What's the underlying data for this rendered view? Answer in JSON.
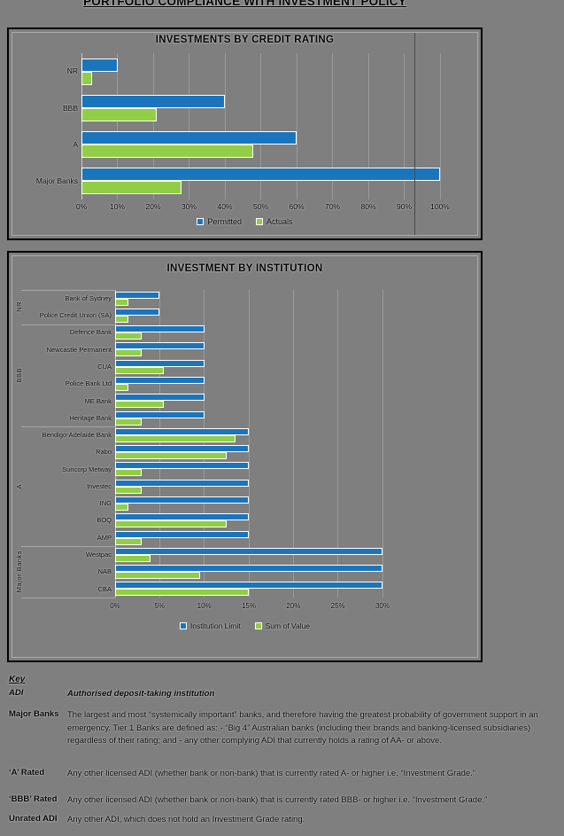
{
  "page": {
    "title": "PORTFOLIO COMPLIANCE WITH INVESTMENT POLICY"
  },
  "colors": {
    "background": "#7F7F7F",
    "permitted_blue": "#1B75BC",
    "actuals_green": "#92CE45",
    "bar_border": "#FFFFFF"
  },
  "chart_data": [
    {
      "type": "bar",
      "orientation": "horizontal",
      "title": "INVESTMENTS BY CREDIT RATING",
      "categories": [
        "NR",
        "BBB",
        "A",
        "Major Banks"
      ],
      "series": [
        {
          "name": "Permitted",
          "color": "#1B75BC",
          "values": [
            10,
            40,
            60,
            100
          ]
        },
        {
          "name": "Actuals",
          "color": "#92CE45",
          "values": [
            3,
            21,
            48,
            28
          ]
        }
      ],
      "xlim": [
        0,
        100
      ],
      "x_ticks": [
        "0%",
        "10%",
        "20%",
        "30%",
        "40%",
        "50%",
        "60%",
        "70%",
        "80%",
        "90%",
        "100%"
      ],
      "grid": true,
      "legend_position": "bottom"
    },
    {
      "type": "bar",
      "orientation": "horizontal",
      "title": "INVESTMENT BY INSTITUTION",
      "groups": [
        {
          "label": "NR",
          "count": 2
        },
        {
          "label": "BBB",
          "count": 6
        },
        {
          "label": "A",
          "count": 7
        },
        {
          "label": "Major Banks",
          "count": 3
        }
      ],
      "categories": [
        "Bank of Sydney",
        "Police Credit Union (SA)",
        "Defence Bank",
        "Newcastle Permanent",
        "CUA",
        "Police Bank Ltd",
        "ME Bank",
        "Heritage Bank",
        "Bendigo-Adelaide Bank",
        "Rabo",
        "Suncorp Metway",
        "Investec",
        "ING",
        "BOQ",
        "AMP",
        "Westpac",
        "NAB",
        "CBA"
      ],
      "series": [
        {
          "name": "Institution Limit",
          "color": "#1B75BC",
          "values": [
            5,
            5,
            10,
            10,
            10,
            10,
            10,
            10,
            15,
            15,
            15,
            15,
            15,
            15,
            15,
            30,
            30,
            30
          ]
        },
        {
          "name": "Sum of Value",
          "color": "#92CE45",
          "values": [
            1.5,
            1.5,
            3,
            3,
            5.5,
            1.5,
            5.5,
            3,
            13.5,
            12.5,
            3,
            3,
            1.5,
            12.5,
            3,
            4,
            9.5,
            15
          ]
        }
      ],
      "xlim": [
        0,
        30
      ],
      "x_ticks": [
        "0%",
        "5%",
        "10%",
        "15%",
        "20%",
        "25%",
        "30%"
      ],
      "grid": true,
      "legend_position": "bottom"
    }
  ],
  "key": {
    "heading": "Key",
    "entries": [
      {
        "term": "ADI",
        "definition": "Authorised deposit-taking institution"
      },
      {
        "term": "Major Banks",
        "definition": "The largest and most “systemically important” banks, and therefore having the greatest probability of government support in an emergency. Tier 1 Banks are defined as: - “Big 4” Australian banks (including their brands and banking-licensed subsidiaries) regardless of their rating; and - any other complying ADI that currently holds a rating of AA- or above."
      },
      {
        "term": "‘A’ Rated",
        "definition": "Any other licensed ADI (whether bank or non-bank) that is currently rated A- or higher i.e. “Investment Grade.”"
      },
      {
        "term": "‘BBB’ Rated",
        "definition": "Any other licensed ADI (whether bank or non-bank) that is currently rated BBB- or higher i.e. “Investment Grade.”"
      },
      {
        "term": "Unrated ADI",
        "definition": "Any other ADI, which does not hold an Investment Grade rating."
      }
    ]
  }
}
